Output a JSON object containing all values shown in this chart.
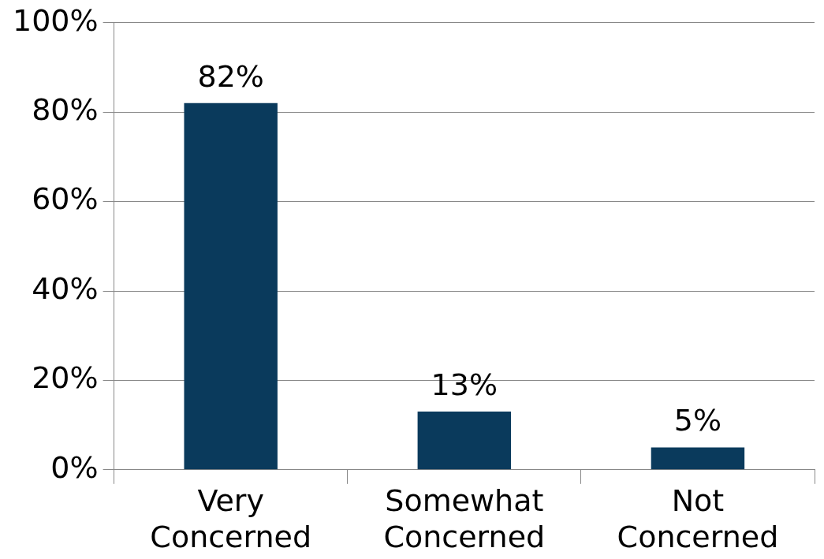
{
  "chart_data": {
    "type": "bar",
    "categories": [
      "Very Concerned",
      "Somewhat Concerned",
      "Not Concerned"
    ],
    "values": [
      82,
      13,
      5
    ],
    "color": "#0a3a5c",
    "ylim": [
      0,
      100
    ],
    "yticks": [
      {
        "value": 0,
        "label": "0%"
      },
      {
        "value": 20,
        "label": "20%"
      },
      {
        "value": 40,
        "label": "40%"
      },
      {
        "value": 60,
        "label": "60%"
      },
      {
        "value": 80,
        "label": "80%"
      },
      {
        "value": 100,
        "label": "100%"
      }
    ],
    "value_labels": [
      "82%",
      "13%",
      "5%"
    ],
    "grid": "y",
    "legend": false
  }
}
